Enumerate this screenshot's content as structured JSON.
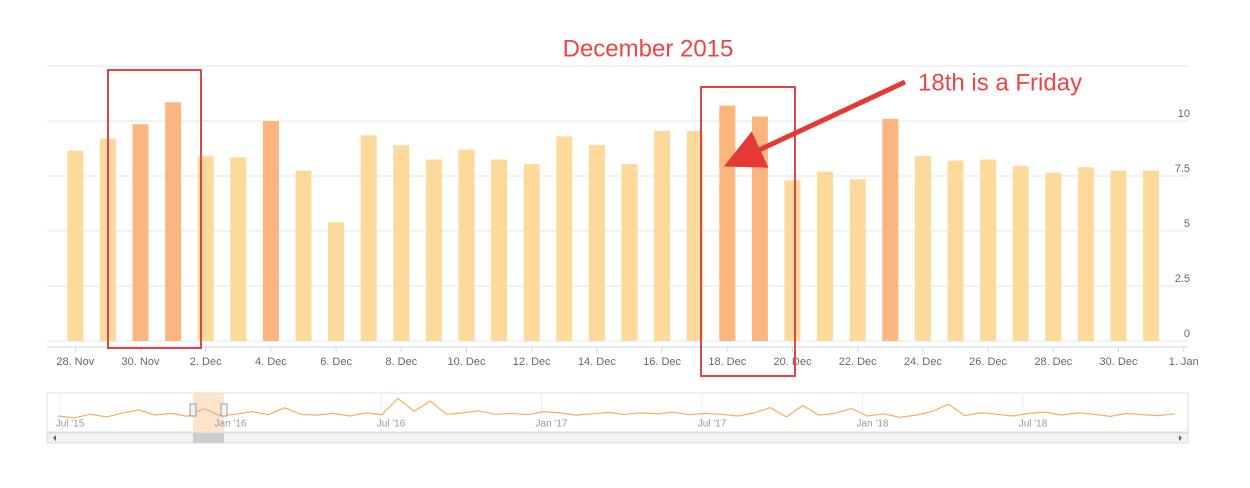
{
  "chart_data": {
    "type": "bar",
    "title": "December 2015",
    "annotation": "18th is a Friday",
    "categories": [
      "28. Nov",
      null,
      "30. Nov",
      null,
      "2. Dec",
      null,
      "4. Dec",
      null,
      "6. Dec",
      null,
      "8. Dec",
      null,
      "10. Dec",
      null,
      "12. Dec",
      null,
      "14. Dec",
      null,
      "16. Dec",
      null,
      "18. Dec",
      null,
      "20. Dec",
      null,
      "22. Dec",
      null,
      "24. Dec",
      null,
      "26. Dec",
      null,
      "28. Dec",
      null,
      "30. Dec",
      null,
      "1. Jan"
    ],
    "values": [
      8.65,
      9.2,
      9.85,
      10.85,
      8.4,
      8.35,
      10.0,
      7.75,
      5.4,
      9.35,
      8.9,
      8.25,
      8.7,
      8.25,
      8.05,
      9.3,
      8.9,
      8.05,
      9.55,
      9.55,
      10.7,
      10.2,
      7.3,
      7.7,
      7.35,
      10.1,
      8.4,
      8.2,
      8.25,
      7.95,
      7.65,
      7.9,
      7.75,
      7.75,
      null
    ],
    "colors": [
      "#fdd99b",
      "#fdd99b",
      "#fbb57f",
      "#fbb57f",
      "#fdd99b",
      "#fdd99b",
      "#fbb57f",
      "#fdd99b",
      "#fdd99b",
      "#fdd99b",
      "#fdd99b",
      "#fdd99b",
      "#fdd99b",
      "#fdd99b",
      "#fdd99b",
      "#fdd99b",
      "#fdd99b",
      "#fdd99b",
      "#fdd99b",
      "#fdd99b",
      "#fbb57f",
      "#fbb57f",
      "#fdd99b",
      "#fdd99b",
      "#fdd99b",
      "#fbb57f",
      "#fdd99b",
      "#fdd99b",
      "#fdd99b",
      "#fdd99b",
      "#fdd99b",
      "#fdd99b",
      "#fdd99b",
      "#fdd99b",
      "#fdd99b"
    ],
    "ylim": [
      0,
      12.5
    ],
    "yticks": [
      0,
      2.5,
      5,
      7.5,
      10
    ],
    "grid": true,
    "navigator": {
      "labels": [
        "Jul '15",
        "Jan '16",
        "Jul '16",
        "Jan '17",
        "Jul '17",
        "Jan '18",
        "Jul '18"
      ],
      "color": "#f0b060",
      "ylim": [
        4,
        12
      ],
      "values": [
        7.2,
        6.8,
        7.6,
        7.0,
        7.9,
        8.6,
        7.4,
        7.8,
        7.1,
        8.9,
        7.3,
        7.6,
        8.2,
        7.5,
        9.1,
        7.6,
        7.4,
        7.8,
        7.2,
        7.9,
        7.5,
        11.2,
        8.3,
        10.6,
        7.6,
        7.9,
        8.4,
        7.6,
        7.8,
        7.5,
        8.2,
        7.9,
        7.4,
        7.7,
        8.0,
        7.6,
        7.9,
        7.7,
        8.1,
        7.5,
        7.8,
        7.6,
        7.2,
        7.9,
        9.1,
        7.0,
        9.6,
        7.4,
        7.8,
        8.9,
        7.2,
        7.7,
        6.9,
        7.4,
        8.2,
        9.9,
        7.3,
        7.9,
        7.6,
        7.2,
        7.8,
        8.1,
        7.4,
        7.9,
        7.6,
        7.1,
        7.8,
        7.5,
        7.3,
        7.7
      ]
    }
  }
}
